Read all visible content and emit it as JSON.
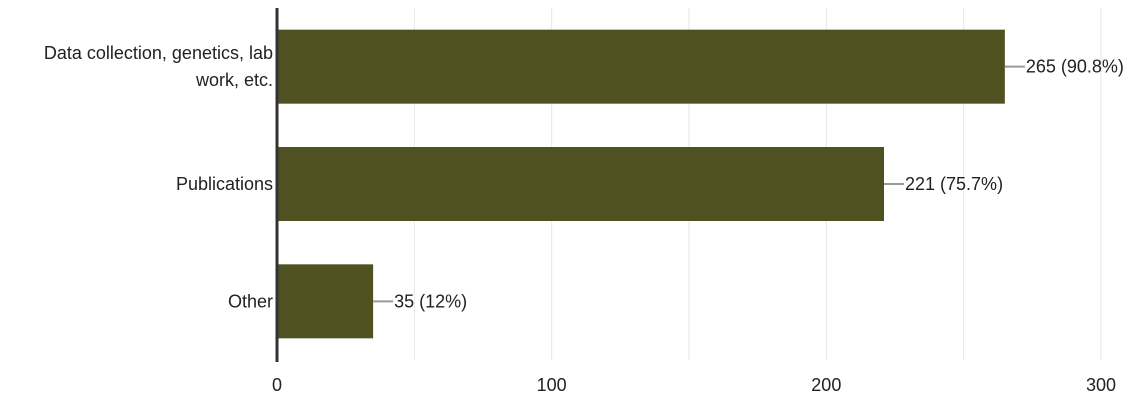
{
  "chart_data": {
    "type": "bar",
    "orientation": "horizontal",
    "categories": [
      [
        "Data collection, genetics, lab",
        "work, etc."
      ],
      [
        "Publications"
      ],
      [
        "Other"
      ]
    ],
    "values": [
      265,
      221,
      35
    ],
    "data_labels": [
      "265 (90.8%)",
      "221 (75.7%)",
      "35 (12%)"
    ],
    "xlim": [
      0,
      300
    ],
    "x_ticks": [
      0,
      100,
      200,
      300
    ],
    "x_tick_labels": [
      "0",
      "100",
      "200",
      "300"
    ],
    "grid": true,
    "bar_color": "#4f5120"
  }
}
